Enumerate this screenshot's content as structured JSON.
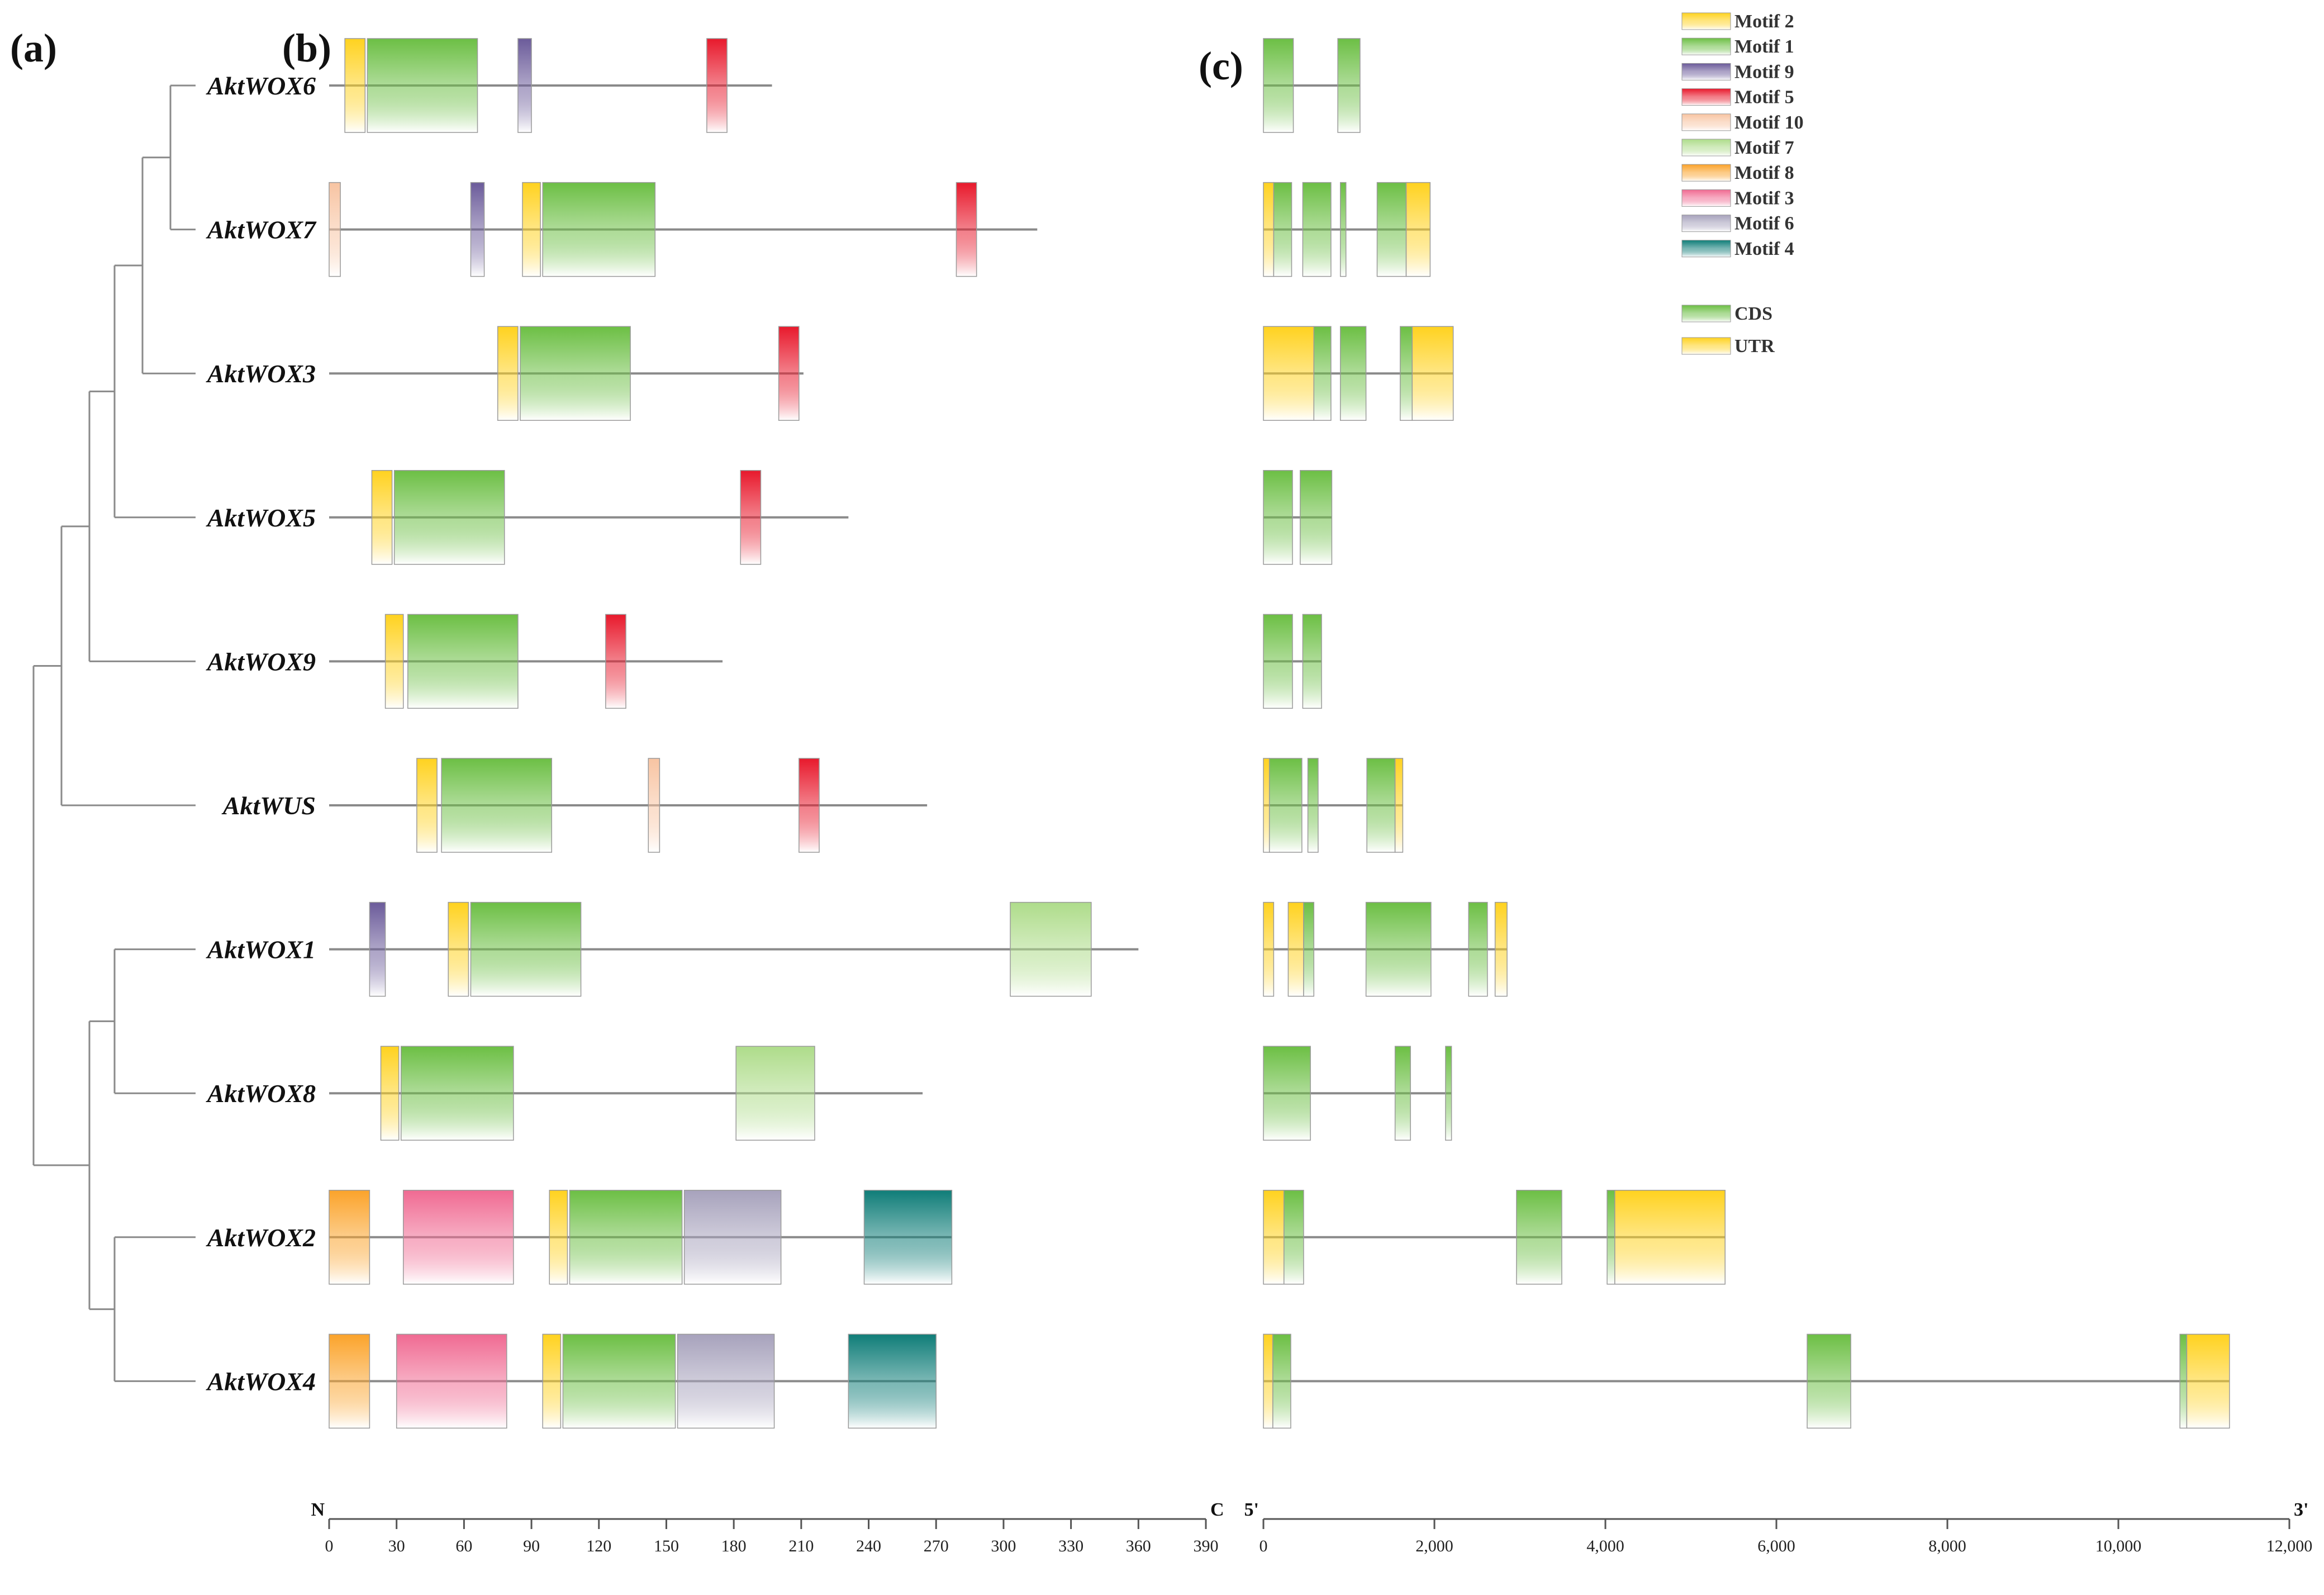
{
  "panels": {
    "a": "(a)",
    "b": "(b)",
    "c": "(c)"
  },
  "colors": {
    "Motif 2": "#ffd21f",
    "Motif 1": "#6cbf44",
    "Motif 9": "#6b5b9a",
    "Motif 5": "#e8192c",
    "Motif 10": "#f8c4a2",
    "Motif 7": "#aedc8a",
    "Motif 8": "#fba32a",
    "Motif 3": "#f06a92",
    "Motif 6": "#a7a2bc",
    "Motif 4": "#0f7d78",
    "CDS": "#6cbf44",
    "UTR": "#ffd21f",
    "line": "#8a8a8a"
  },
  "legend": {
    "motifs": [
      "Motif 2",
      "Motif 1",
      "Motif 9",
      "Motif 5",
      "Motif 10",
      "Motif 7",
      "Motif 8",
      "Motif 3",
      "Motif 6",
      "Motif 4"
    ],
    "structure": [
      "CDS",
      "UTR"
    ]
  },
  "genes": [
    "AktWOX6",
    "AktWOX7",
    "AktWOX3",
    "AktWOX5",
    "AktWOX9",
    "AktWUS",
    "AktWOX1",
    "AktWOX8",
    "AktWOX2",
    "AktWOX4"
  ],
  "chart_data": [
    {
      "type": "motif-diagram",
      "xlim": [
        0,
        390
      ],
      "ticks": [
        0,
        30,
        60,
        90,
        120,
        150,
        180,
        210,
        240,
        270,
        300,
        330,
        360,
        390
      ],
      "tick_labels": [
        "0",
        "30",
        "60",
        "90",
        "120",
        "150",
        "180",
        "210",
        "240",
        "270",
        "300",
        "330",
        "360",
        "390"
      ],
      "left_end": "N",
      "right_end": "C",
      "proteins": [
        {
          "gene": "AktWOX6",
          "length": 197,
          "motifs": [
            [
              "Motif 2",
              7,
              16
            ],
            [
              "Motif 1",
              17,
              66
            ],
            [
              "Motif 9",
              84,
              90
            ],
            [
              "Motif 5",
              168,
              177
            ]
          ]
        },
        {
          "gene": "AktWOX7",
          "length": 315,
          "motifs": [
            [
              "Motif 10",
              0,
              5
            ],
            [
              "Motif 9",
              63,
              69
            ],
            [
              "Motif 2",
              86,
              94
            ],
            [
              "Motif 1",
              95,
              145
            ],
            [
              "Motif 5",
              279,
              288
            ]
          ]
        },
        {
          "gene": "AktWOX3",
          "length": 211,
          "motifs": [
            [
              "Motif 2",
              75,
              84
            ],
            [
              "Motif 1",
              85,
              134
            ],
            [
              "Motif 5",
              200,
              209
            ]
          ]
        },
        {
          "gene": "AktWOX5",
          "length": 231,
          "motifs": [
            [
              "Motif 2",
              19,
              28
            ],
            [
              "Motif 1",
              29,
              78
            ],
            [
              "Motif 5",
              183,
              192
            ]
          ]
        },
        {
          "gene": "AktWOX9",
          "length": 175,
          "motifs": [
            [
              "Motif 2",
              25,
              33
            ],
            [
              "Motif 1",
              35,
              84
            ],
            [
              "Motif 5",
              123,
              132
            ]
          ]
        },
        {
          "gene": "AktWUS",
          "length": 266,
          "motifs": [
            [
              "Motif 2",
              39,
              48
            ],
            [
              "Motif 1",
              50,
              99
            ],
            [
              "Motif 10",
              142,
              147
            ],
            [
              "Motif 5",
              209,
              218
            ]
          ]
        },
        {
          "gene": "AktWOX1",
          "length": 360,
          "motifs": [
            [
              "Motif 9",
              18,
              25
            ],
            [
              "Motif 2",
              53,
              62
            ],
            [
              "Motif 1",
              63,
              112
            ],
            [
              "Motif 7",
              303,
              339
            ]
          ]
        },
        {
          "gene": "AktWOX8",
          "length": 264,
          "motifs": [
            [
              "Motif 2",
              23,
              31
            ],
            [
              "Motif 1",
              32,
              82
            ],
            [
              "Motif 7",
              181,
              216
            ]
          ]
        },
        {
          "gene": "AktWOX2",
          "length": 277,
          "motifs": [
            [
              "Motif 8",
              0,
              18
            ],
            [
              "Motif 3",
              33,
              82
            ],
            [
              "Motif 2",
              98,
              106
            ],
            [
              "Motif 1",
              107,
              157
            ],
            [
              "Motif 6",
              158,
              201
            ],
            [
              "Motif 4",
              238,
              277
            ]
          ]
        },
        {
          "gene": "AktWOX4",
          "length": 270,
          "motifs": [
            [
              "Motif 8",
              0,
              18
            ],
            [
              "Motif 3",
              30,
              79
            ],
            [
              "Motif 2",
              95,
              103
            ],
            [
              "Motif 1",
              104,
              154
            ],
            [
              "Motif 6",
              155,
              198
            ],
            [
              "Motif 4",
              231,
              270
            ]
          ]
        }
      ]
    },
    {
      "type": "gene-structure",
      "xlim": [
        0,
        12000
      ],
      "ticks": [
        0,
        2000,
        4000,
        6000,
        8000,
        10000,
        12000
      ],
      "tick_labels": [
        "0",
        "2,000",
        "4,000",
        "6,000",
        "8,000",
        "10,000",
        "12,000"
      ],
      "left_end": "5'",
      "right_end": "3'",
      "structures": [
        {
          "gene": "AktWOX6",
          "length": 1130,
          "features": [
            [
              "CDS",
              0,
              350
            ],
            [
              "CDS",
              870,
              1130
            ]
          ]
        },
        {
          "gene": "AktWOX7",
          "length": 1950,
          "features": [
            [
              "UTR",
              0,
              120
            ],
            [
              "CDS",
              120,
              330
            ],
            [
              "CDS",
              460,
              790
            ],
            [
              "CDS",
              900,
              960
            ],
            [
              "CDS",
              1330,
              1670
            ],
            [
              "UTR",
              1670,
              1950
            ]
          ]
        },
        {
          "gene": "AktWOX3",
          "length": 2220,
          "features": [
            [
              "UTR",
              0,
              590
            ],
            [
              "CDS",
              590,
              790
            ],
            [
              "CDS",
              900,
              1200
            ],
            [
              "CDS",
              1600,
              1740
            ],
            [
              "UTR",
              1740,
              2220
            ]
          ]
        },
        {
          "gene": "AktWOX5",
          "length": 800,
          "features": [
            [
              "CDS",
              0,
              340
            ],
            [
              "CDS",
              430,
              800
            ]
          ]
        },
        {
          "gene": "AktWOX9",
          "length": 680,
          "features": [
            [
              "CDS",
              0,
              340
            ],
            [
              "CDS",
              460,
              680
            ]
          ]
        },
        {
          "gene": "AktWUS",
          "length": 1630,
          "features": [
            [
              "UTR",
              0,
              70
            ],
            [
              "CDS",
              70,
              450
            ],
            [
              "CDS",
              520,
              640
            ],
            [
              "CDS",
              1210,
              1540
            ],
            [
              "UTR",
              1540,
              1630
            ]
          ]
        },
        {
          "gene": "AktWOX1",
          "length": 2850,
          "features": [
            [
              "UTR",
              0,
              120
            ],
            [
              "UTR",
              290,
              470
            ],
            [
              "CDS",
              470,
              590
            ],
            [
              "CDS",
              1200,
              1960
            ],
            [
              "CDS",
              2400,
              2620
            ],
            [
              "UTR",
              2710,
              2850
            ]
          ]
        },
        {
          "gene": "AktWOX8",
          "length": 2200,
          "features": [
            [
              "CDS",
              0,
              550
            ],
            [
              "CDS",
              1540,
              1720
            ],
            [
              "CDS",
              2130,
              2200
            ]
          ]
        },
        {
          "gene": "AktWOX2",
          "length": 5400,
          "features": [
            [
              "UTR",
              0,
              240
            ],
            [
              "CDS",
              240,
              470
            ],
            [
              "CDS",
              2960,
              3490
            ],
            [
              "CDS",
              4020,
              4110
            ],
            [
              "UTR",
              4110,
              5400
            ]
          ]
        },
        {
          "gene": "AktWOX4",
          "length": 11300,
          "features": [
            [
              "UTR",
              0,
              110
            ],
            [
              "CDS",
              110,
              320
            ],
            [
              "CDS",
              6360,
              6870
            ],
            [
              "CDS",
              10720,
              10800
            ],
            [
              "UTR",
              10800,
              11300
            ]
          ]
        }
      ]
    }
  ]
}
